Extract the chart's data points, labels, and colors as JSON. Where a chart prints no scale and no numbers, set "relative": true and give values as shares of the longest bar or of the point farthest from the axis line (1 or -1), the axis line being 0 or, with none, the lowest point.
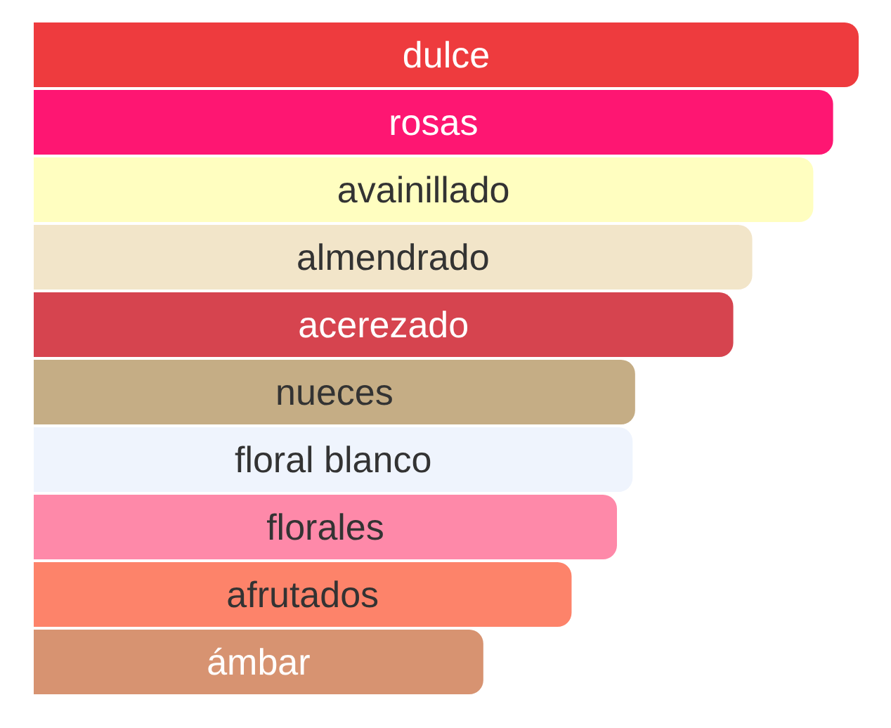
{
  "chart_data": {
    "type": "bar",
    "orientation": "horizontal",
    "relative": true,
    "data_labels": false,
    "categories": [
      "dulce",
      "rosas",
      "avainillado",
      "almendrado",
      "acerezado",
      "nueces",
      "floral blanco",
      "florales",
      "afrutados",
      "ámbar"
    ],
    "values": [
      1,
      0.969,
      0.945,
      0.871,
      0.848,
      0.729,
      0.726,
      0.707,
      0.652,
      0.545
    ],
    "colors": [
      "#ee3b3e",
      "#fe1672",
      "#fffec0",
      "#f2e5c9",
      "#d6444f",
      "#c5ad85",
      "#eff4fd",
      "#fe89a9",
      "#fd836a",
      "#d79371"
    ]
  }
}
